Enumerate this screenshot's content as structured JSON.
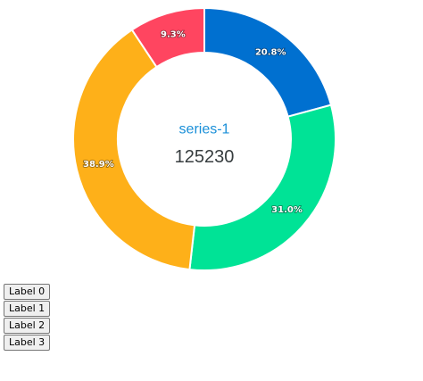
{
  "chart_data": {
    "type": "pie",
    "style": "donut",
    "series_name": "series-1",
    "total": "125230",
    "slices": [
      {
        "label": "20.8%",
        "value": 20.8,
        "color": "#0070d0"
      },
      {
        "label": "31.0%",
        "value": 31.0,
        "color": "#00e396"
      },
      {
        "label": "38.9%",
        "value": 38.9,
        "color": "#feb019"
      },
      {
        "label": "9.3%",
        "value": 9.3,
        "color": "#ff4560"
      }
    ],
    "center_name_color": "#1a8fd8",
    "center_total_color": "#373d3f"
  },
  "buttons": [
    {
      "label": "Label 0"
    },
    {
      "label": "Label 1"
    },
    {
      "label": "Label 2"
    },
    {
      "label": "Label 3"
    }
  ]
}
